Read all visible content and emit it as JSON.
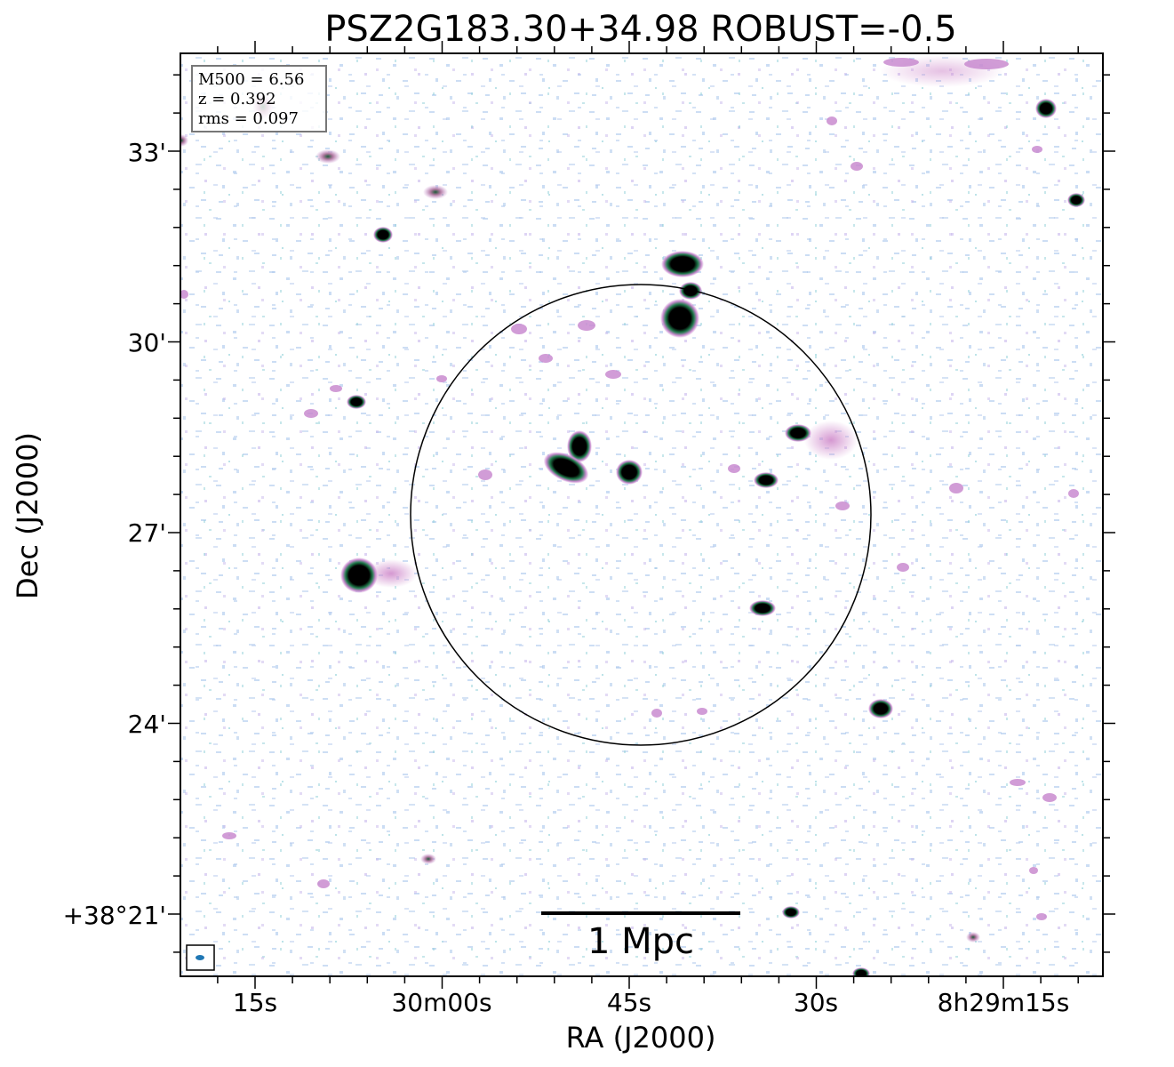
{
  "title": "PSZ2G183.30+34.98 ROBUST=-0.5",
  "axes": {
    "xlabel": "RA (J2000)",
    "ylabel": "Dec (J2000)",
    "x_ticks": [
      "15s",
      "30m00s",
      "45s",
      "30s",
      "8h29m15s"
    ],
    "y_ticks": [
      "33'",
      "30'",
      "27'",
      "24'",
      "+38°21'"
    ]
  },
  "info_box": {
    "line1": "M500 = 6.56",
    "line2": "z = 0.392",
    "line3": "rms = 0.097"
  },
  "scale_bar": {
    "label": "1 Mpc"
  },
  "colors": {
    "faint": "#a9c6ec",
    "mid": "#c98bd0",
    "bright": "#1e7a4a",
    "core": "#000000",
    "beam": "#1f77b4"
  }
}
